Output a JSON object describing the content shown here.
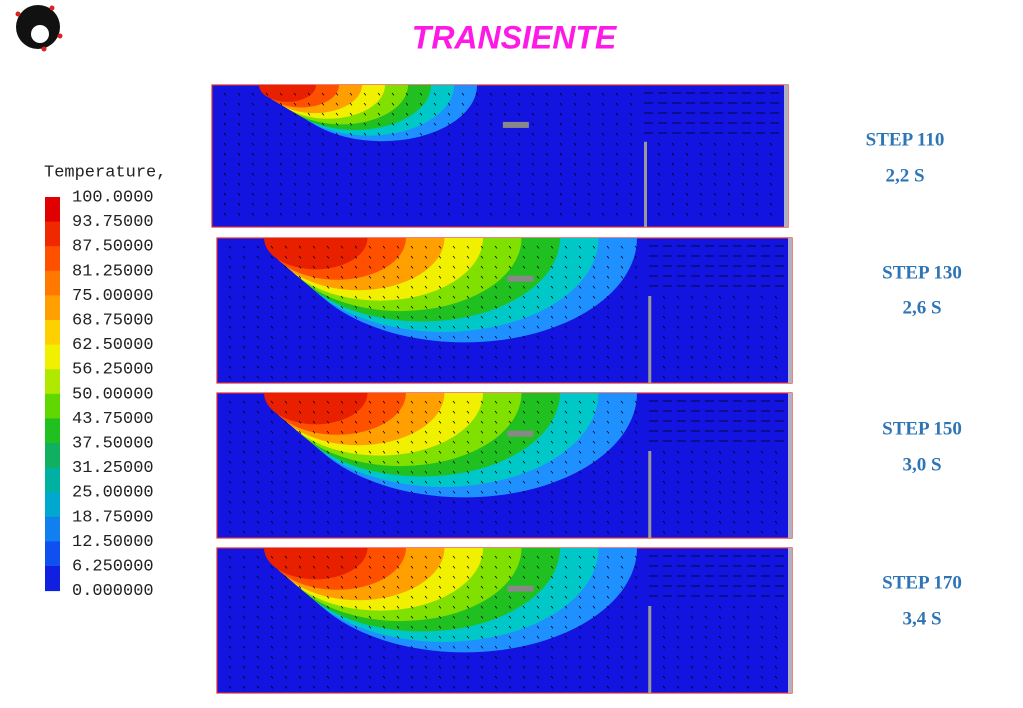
{
  "title": "TRANSIENTE",
  "legend": {
    "title": "Temperature,",
    "levels": [
      "100.0000",
      "93.75000",
      "87.50000",
      "81.25000",
      "75.00000",
      "68.75000",
      "62.50000",
      "56.25000",
      "50.00000",
      "43.75000",
      "37.50000",
      "31.25000",
      "25.00000",
      "18.75000",
      "12.50000",
      "6.250000",
      "0.000000"
    ]
  },
  "panels": [
    {
      "step": "STEP 110",
      "time": "2,2 S"
    },
    {
      "step": "STEP 130",
      "time": "2,6 S"
    },
    {
      "step": "STEP 150",
      "time": "3,0 S"
    },
    {
      "step": "STEP 170",
      "time": "3,4 S"
    }
  ]
}
